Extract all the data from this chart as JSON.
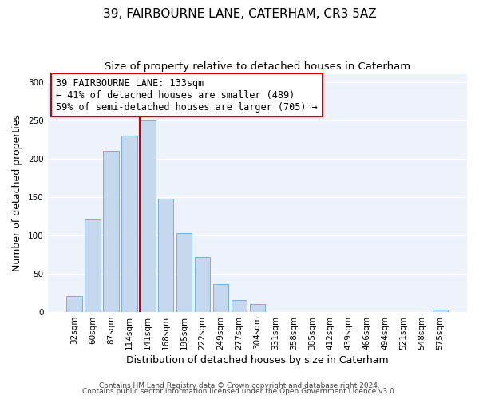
{
  "title": "39, FAIRBOURNE LANE, CATERHAM, CR3 5AZ",
  "subtitle": "Size of property relative to detached houses in Caterham",
  "xlabel": "Distribution of detached houses by size in Caterham",
  "ylabel": "Number of detached properties",
  "bar_labels": [
    "32sqm",
    "60sqm",
    "87sqm",
    "114sqm",
    "141sqm",
    "168sqm",
    "195sqm",
    "222sqm",
    "249sqm",
    "277sqm",
    "304sqm",
    "331sqm",
    "358sqm",
    "385sqm",
    "412sqm",
    "439sqm",
    "466sqm",
    "494sqm",
    "521sqm",
    "548sqm",
    "575sqm"
  ],
  "bar_values": [
    20,
    120,
    210,
    230,
    250,
    147,
    103,
    71,
    36,
    15,
    10,
    0,
    0,
    0,
    0,
    0,
    0,
    0,
    0,
    0,
    3
  ],
  "bar_color": "#c5d8ed",
  "bar_edge_color": "#7aafd4",
  "vline_color": "#cc0000",
  "annotation_text": "39 FAIRBOURNE LANE: 133sqm\n← 41% of detached houses are smaller (489)\n59% of semi-detached houses are larger (705) →",
  "annotation_box_color": "white",
  "annotation_box_edge": "#cc0000",
  "ylim": [
    0,
    310
  ],
  "yticks": [
    0,
    50,
    100,
    150,
    200,
    250,
    300
  ],
  "footer1": "Contains HM Land Registry data © Crown copyright and database right 2024.",
  "footer2": "Contains public sector information licensed under the Open Government Licence v3.0.",
  "background_color": "#ffffff",
  "plot_bg_color": "#eef2fb",
  "title_fontsize": 11,
  "subtitle_fontsize": 9.5,
  "axis_label_fontsize": 9,
  "tick_fontsize": 7.5,
  "annotation_fontsize": 8.5,
  "footer_fontsize": 6.5,
  "vline_index": 4
}
